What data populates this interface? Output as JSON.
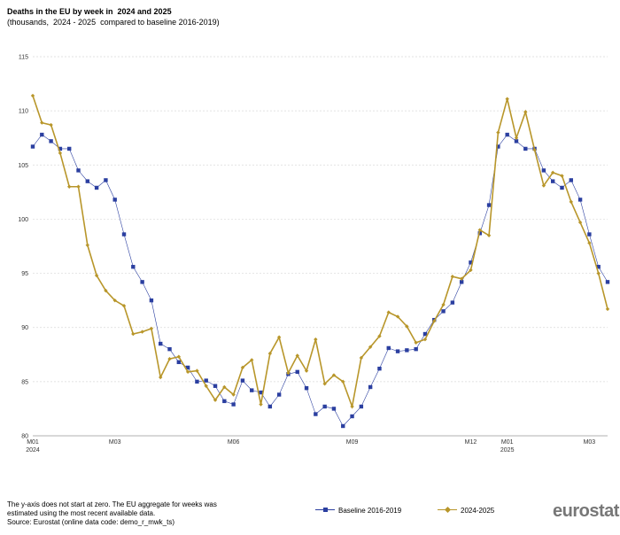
{
  "header": {
    "title": "Deaths in the EU by week in  2024 and 2025",
    "subtitle": "(thousands,  2024 - 2025  compared to baseline 2016-2019)"
  },
  "footer": {
    "note_line1": "The y-axis does not start at zero. The EU aggregate for weeks  was",
    "note_line2": "estimated using the most recent available data.",
    "source": "Source: Eurostat (online data code: demo_r_mwk_ts)",
    "logo_text": "eurostat"
  },
  "colors": {
    "baseline": "#2b3fa0",
    "current": "#b8962a",
    "grid": "#d9d9d9"
  },
  "chart_data": {
    "type": "line",
    "title": "Deaths in the EU by week in  2024 and 2025",
    "subtitle": "(thousands,  2024 - 2025  compared to baseline 2016-2019)",
    "xlabel": "",
    "ylabel": "",
    "ylim": [
      80,
      115
    ],
    "yticks": [
      80,
      85,
      90,
      95,
      100,
      105,
      110,
      115
    ],
    "grid": true,
    "legend_position": "bottom",
    "x_tick_labels": [
      {
        "week": 1,
        "line1": "M01",
        "line2": "2024"
      },
      {
        "week": 10,
        "line1": "M03",
        "line2": ""
      },
      {
        "week": 23,
        "line1": "M06",
        "line2": ""
      },
      {
        "week": 36,
        "line1": "M09",
        "line2": ""
      },
      {
        "week": 49,
        "line1": "M12",
        "line2": ""
      },
      {
        "week": 53,
        "line1": "M01",
        "line2": "2025"
      },
      {
        "week": 62,
        "line1": "M03",
        "line2": ""
      }
    ],
    "series": [
      {
        "name": "Baseline 2016-2019",
        "marker": "square",
        "values": [
          106.7,
          107.8,
          107.2,
          106.5,
          106.5,
          104.5,
          103.5,
          102.9,
          103.6,
          101.8,
          98.6,
          95.6,
          94.2,
          92.5,
          88.5,
          88.0,
          86.8,
          86.3,
          85.0,
          85.1,
          84.6,
          83.2,
          82.9,
          85.1,
          84.2,
          84.0,
          82.7,
          83.8,
          85.7,
          85.9,
          84.4,
          82.0,
          82.7,
          82.5,
          80.9,
          81.8,
          82.7,
          84.5,
          86.2,
          88.1,
          87.8,
          87.9,
          88.0,
          89.4,
          90.7,
          91.5,
          92.3,
          94.2,
          96.0,
          98.7,
          101.3,
          106.7,
          107.8,
          107.2,
          106.5,
          106.5,
          104.5,
          103.5,
          102.9,
          103.6,
          101.8,
          98.6,
          95.6,
          94.2
        ]
      },
      {
        "name": "2024-2025",
        "marker": "diamond",
        "values": [
          111.4,
          108.9,
          108.7,
          106.1,
          103.0,
          103.0,
          97.6,
          94.8,
          93.4,
          92.5,
          92.0,
          89.4,
          89.6,
          89.9,
          85.4,
          87.1,
          87.3,
          85.9,
          86.0,
          84.6,
          83.3,
          84.5,
          83.8,
          86.3,
          87.0,
          82.9,
          87.6,
          89.1,
          85.8,
          87.4,
          86.0,
          88.9,
          84.8,
          85.6,
          85.0,
          82.7,
          87.2,
          88.2,
          89.2,
          91.4,
          91.0,
          90.1,
          88.6,
          88.9,
          90.6,
          92.1,
          94.7,
          94.5,
          95.3,
          99.0,
          98.5,
          108.0,
          111.1,
          107.5,
          109.9,
          106.4,
          103.1,
          104.3,
          104.0,
          101.6,
          99.7,
          97.8,
          95.0,
          91.7
        ]
      }
    ]
  }
}
